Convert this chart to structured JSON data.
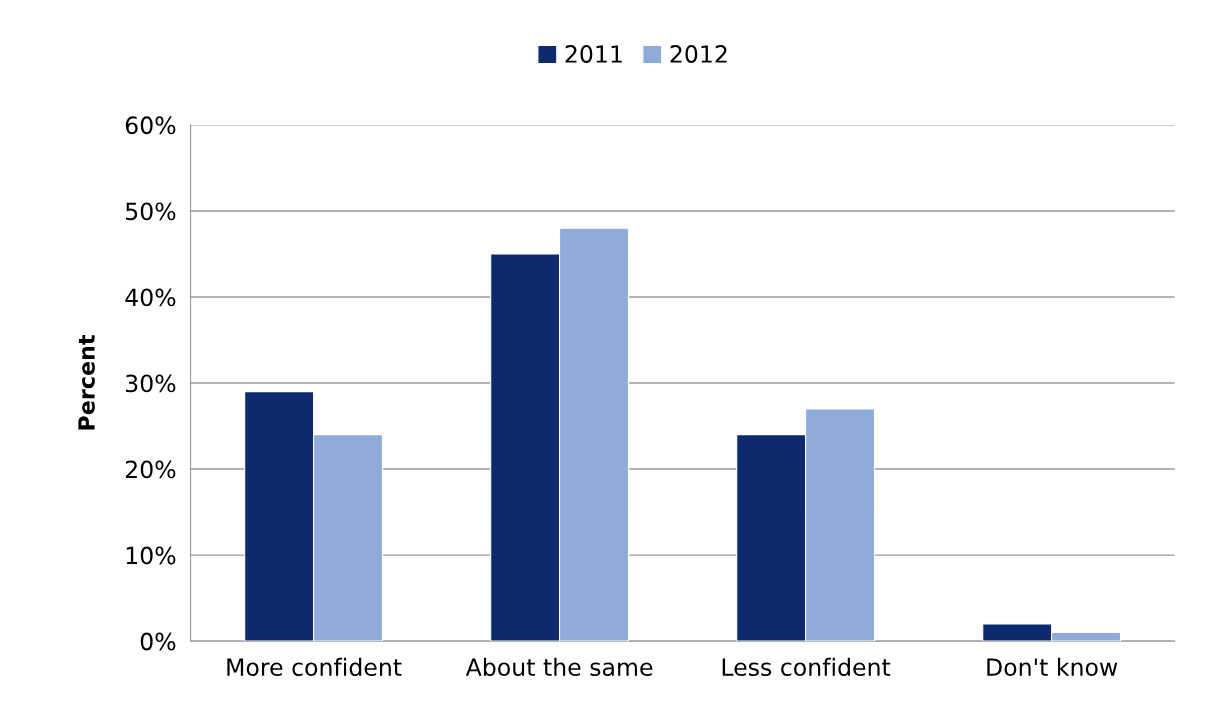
{
  "chart_data": {
    "type": "bar",
    "ylabel": "Percent",
    "categories": [
      "More confident",
      "About the same",
      "Less confident",
      "Don't know"
    ],
    "series": [
      {
        "name": "2011",
        "color": "#0e2a6e",
        "values": [
          29,
          45,
          24,
          2
        ]
      },
      {
        "name": "2012",
        "color": "#8fabd9",
        "values": [
          24,
          48,
          27,
          1
        ]
      }
    ],
    "ylim": [
      0,
      60
    ],
    "yticks": [
      {
        "value": 0,
        "label": "0%"
      },
      {
        "value": 10,
        "label": "10%"
      },
      {
        "value": 20,
        "label": "20%"
      },
      {
        "value": 30,
        "label": "30%"
      },
      {
        "value": 40,
        "label": "40%"
      },
      {
        "value": 50,
        "label": "50%"
      },
      {
        "value": 60,
        "label": "60%"
      }
    ],
    "grid": "y",
    "legend": "top"
  }
}
